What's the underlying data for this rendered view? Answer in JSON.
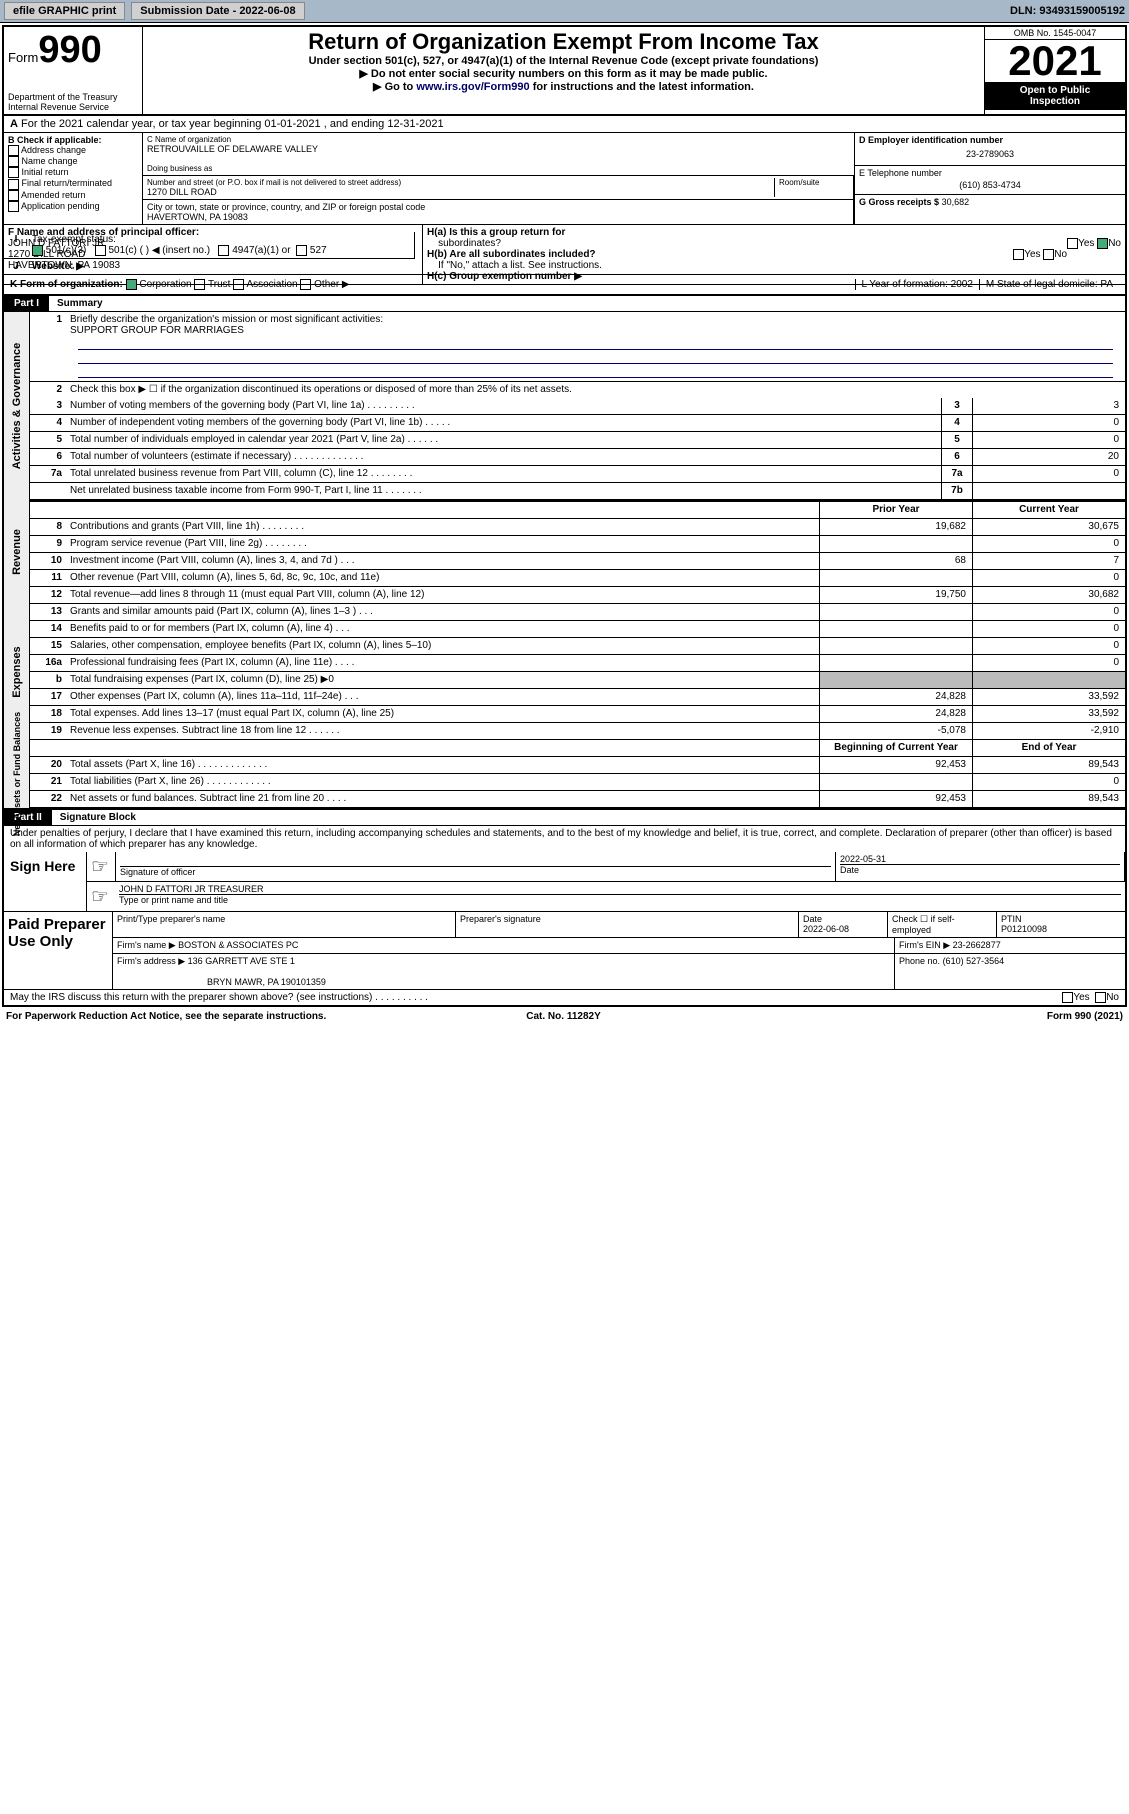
{
  "topbar": {
    "efile": "efile GRAPHIC print",
    "sub": "Submission Date - 2022-06-08",
    "dln": "DLN: 93493159005192"
  },
  "hdr": {
    "form_prefix": "Form",
    "form_no": "990",
    "dept": "Department of the Treasury",
    "irs": "Internal Revenue Service",
    "title": "Return of Organization Exempt From Income Tax",
    "sub1": "Under section 501(c), 527, or 4947(a)(1) of the Internal Revenue Code (except private foundations)",
    "sub2": "▶ Do not enter social security numbers on this form as it may be made public.",
    "sub3_pre": "▶ Go to ",
    "sub3_link": "www.irs.gov/Form990",
    "sub3_post": " for instructions and the latest information.",
    "omb": "OMB No. 1545-0047",
    "year": "2021",
    "pub1": "Open to Public",
    "pub2": "Inspection"
  },
  "rowA": {
    "text": "For the 2021 calendar year, or tax year beginning 01-01-2021   , and ending 12-31-2021",
    "label": "A"
  },
  "B": {
    "hdr": "B Check if applicable:",
    "items": [
      "Address change",
      "Name change",
      "Initial return",
      "Final return/terminated",
      "Amended return",
      "Application pending"
    ]
  },
  "C": {
    "lbl_name": "C Name of organization",
    "org": "RETROUVAILLE OF DELAWARE VALLEY",
    "dba_lbl": "Doing business as",
    "dba": "",
    "addr_lbl": "Number and street (or P.O. box if mail is not delivered to street address)",
    "room_lbl": "Room/suite",
    "addr": "1270 DILL ROAD",
    "city_lbl": "City or town, state or province, country, and ZIP or foreign postal code",
    "city": "HAVERTOWN, PA  19083"
  },
  "D": {
    "lbl": "D Employer identification number",
    "val": "23-2789063"
  },
  "E": {
    "lbl": "E Telephone number",
    "val": "(610) 853-4734"
  },
  "G": {
    "lbl": "G Gross receipts $",
    "val": "30,682"
  },
  "F": {
    "lbl": "F  Name and address of principal officer:",
    "name": "JOHN D FATTORI JR",
    "addr1": "1270 DILL ROAD",
    "addr2": "HAVERTOWN, PA  19083"
  },
  "H": {
    "a": "H(a)  Is this a group return for",
    "a2": "subordinates?",
    "b": "H(b)  Are all subordinates included?",
    "bno": "If \"No,\" attach a list. See instructions.",
    "c": "H(c)  Group exemption number ▶",
    "yes": "Yes",
    "no": "No"
  },
  "I": {
    "lbl": "Tax-exempt status:",
    "o1": "501(c)(3)",
    "o2": "501(c) (  ) ◀ (insert no.)",
    "o3": "4947(a)(1) or",
    "o4": "527"
  },
  "J": {
    "lbl": "Website: ▶"
  },
  "K": {
    "lbl": "K Form of organization:",
    "o1": "Corporation",
    "o2": "Trust",
    "o3": "Association",
    "o4": "Other ▶",
    "L": "L Year of formation: 2002",
    "M": "M State of legal domicile: PA"
  },
  "part1": {
    "label": "Part I",
    "title": "Summary"
  },
  "summary": {
    "l1": "Briefly describe the organization's mission or most significant activities:",
    "l1v": "SUPPORT GROUP FOR MARRIAGES",
    "l2": "Check this box ▶ ☐  if the organization discontinued its operations or disposed of more than 25% of its net assets.",
    "rows": [
      {
        "n": "3",
        "d": "Number of voting members of the governing body (Part VI, line 1a)   .    .    .    .    .    .    .    .    .",
        "nb": "3",
        "v": "3"
      },
      {
        "n": "4",
        "d": "Number of independent voting members of the governing body (Part VI, line 1b)   .    .    .    .    .",
        "nb": "4",
        "v": "0"
      },
      {
        "n": "5",
        "d": "Total number of individuals employed in calendar year 2021 (Part V, line 2a)   .    .    .    .    .    .",
        "nb": "5",
        "v": "0"
      },
      {
        "n": "6",
        "d": "Total number of volunteers (estimate if necessary)   .    .    .    .    .    .    .    .    .    .    .    .    .",
        "nb": "6",
        "v": "20"
      },
      {
        "n": "7a",
        "d": "Total unrelated business revenue from Part VIII, column (C), line 12   .    .    .    .    .    .    .    .",
        "nb": "7a",
        "v": "0"
      },
      {
        "n": "",
        "d": "Net unrelated business taxable income from Form 990-T, Part I, line 11   .    .    .    .    .    .    .",
        "nb": "7b",
        "v": ""
      }
    ],
    "colh_prior": "Prior Year",
    "colh_curr": "Current Year",
    "rev": [
      {
        "n": "8",
        "d": "Contributions and grants (Part VIII, line 1h)   .    .    .    .    .    .    .    .",
        "p": "19,682",
        "c": "30,675"
      },
      {
        "n": "9",
        "d": "Program service revenue (Part VIII, line 2g)   .    .    .    .    .    .    .    .",
        "p": "",
        "c": "0"
      },
      {
        "n": "10",
        "d": "Investment income (Part VIII, column (A), lines 3, 4, and 7d )   .    .    .",
        "p": "68",
        "c": "7"
      },
      {
        "n": "11",
        "d": "Other revenue (Part VIII, column (A), lines 5, 6d, 8c, 9c, 10c, and 11e)",
        "p": "",
        "c": "0"
      },
      {
        "n": "12",
        "d": "Total revenue—add lines 8 through 11 (must equal Part VIII, column (A), line 12)",
        "p": "19,750",
        "c": "30,682"
      }
    ],
    "exp": [
      {
        "n": "13",
        "d": "Grants and similar amounts paid (Part IX, column (A), lines 1–3 )   .    .    .",
        "p": "",
        "c": "0"
      },
      {
        "n": "14",
        "d": "Benefits paid to or for members (Part IX, column (A), line 4)   .    .    .",
        "p": "",
        "c": "0"
      },
      {
        "n": "15",
        "d": "Salaries, other compensation, employee benefits (Part IX, column (A), lines 5–10)",
        "p": "",
        "c": "0"
      },
      {
        "n": "16a",
        "d": "Professional fundraising fees (Part IX, column (A), line 11e)   .    .    .    .",
        "p": "",
        "c": "0"
      },
      {
        "n": "b",
        "d": "Total fundraising expenses (Part IX, column (D), line 25) ▶0",
        "p": "g",
        "c": "g"
      },
      {
        "n": "17",
        "d": "Other expenses (Part IX, column (A), lines 11a–11d, 11f–24e)   .    .    .",
        "p": "24,828",
        "c": "33,592"
      },
      {
        "n": "18",
        "d": "Total expenses. Add lines 13–17 (must equal Part IX, column (A), line 25)",
        "p": "24,828",
        "c": "33,592"
      },
      {
        "n": "19",
        "d": "Revenue less expenses. Subtract line 18 from line 12   .    .    .    .    .    .",
        "p": "-5,078",
        "c": "-2,910"
      }
    ],
    "colh_beg": "Beginning of Current Year",
    "colh_end": "End of Year",
    "net": [
      {
        "n": "20",
        "d": "Total assets (Part X, line 16)   .    .    .    .    .    .    .    .    .    .    .    .    .",
        "p": "92,453",
        "c": "89,543"
      },
      {
        "n": "21",
        "d": "Total liabilities (Part X, line 26)   .    .    .    .    .    .    .    .    .    .    .    .",
        "p": "",
        "c": "0"
      },
      {
        "n": "22",
        "d": "Net assets or fund balances. Subtract line 21 from line 20   .    .    .    .",
        "p": "92,453",
        "c": "89,543"
      }
    ],
    "vtabs": {
      "ag": "Activities & Governance",
      "rev": "Revenue",
      "exp": "Expenses",
      "net": "Net Assets or\nFund Balances"
    }
  },
  "part2": {
    "label": "Part II",
    "title": "Signature Block",
    "decl": "Under penalties of perjury, I declare that I have examined this return, including accompanying schedules and statements, and to the best of my knowledge and belief, it is true, correct, and complete. Declaration of preparer (other than officer) is based on all information of which preparer has any knowledge.",
    "sign": "Sign Here",
    "sigoff": "Signature of officer",
    "date": "Date",
    "dateval": "2022-05-31",
    "name": "JOHN D FATTORI JR TREASURER",
    "name_lbl": "Type or print name and title"
  },
  "paid": {
    "lbl": "Paid Preparer Use Only",
    "h": [
      "Print/Type preparer's name",
      "Preparer's signature",
      "Date",
      "",
      "PTIN"
    ],
    "dateval": "2022-06-08",
    "check": "Check ☐ if self-employed",
    "ptin": "P01210098",
    "firm_lbl": "Firm's name   ▶",
    "firm": "BOSTON & ASSOCIATES PC",
    "ein_lbl": "Firm's EIN ▶",
    "ein": "23-2662877",
    "addr_lbl": "Firm's address ▶",
    "addr1": "136 GARRETT AVE STE 1",
    "addr2": "BRYN MAWR, PA  190101359",
    "phone_lbl": "Phone no.",
    "phone": "(610) 527-3564"
  },
  "may": {
    "q": "May the IRS discuss this return with the preparer shown above? (see instructions)   .    .    .    .    .    .    .    .    .    .",
    "yes": "Yes",
    "no": "No"
  },
  "foot": {
    "l": "For Paperwork Reduction Act Notice, see the separate instructions.",
    "c": "Cat. No. 11282Y",
    "r": "Form 990 (2021)"
  }
}
